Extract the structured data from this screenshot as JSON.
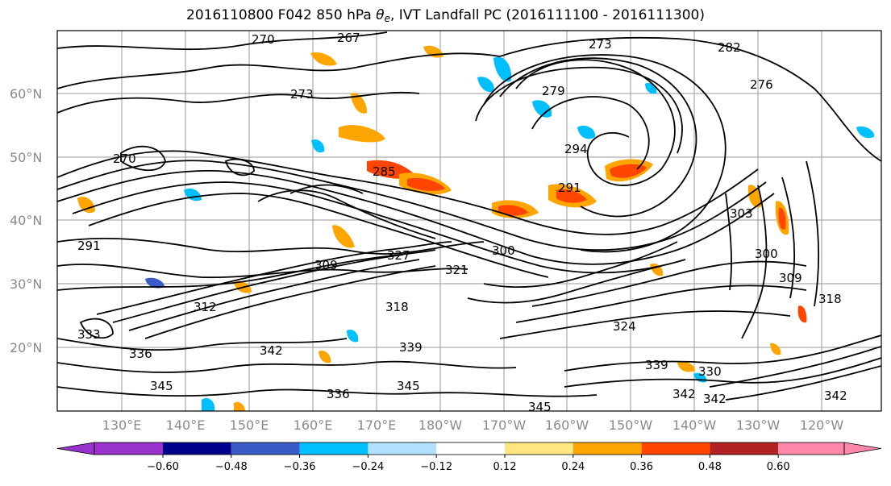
{
  "title": {
    "prefix": "2016110800 F042 850 hPa ",
    "theta": "θ",
    "sub": "e",
    "suffix": ", IVT Landfall PC (2016111100 - 2016111300)"
  },
  "map": {
    "lat_labels": [
      "60°N",
      "50°N",
      "40°N",
      "30°N",
      "20°N"
    ],
    "lon_labels": [
      "130°E",
      "140°E",
      "150°E",
      "160°E",
      "170°E",
      "180°W",
      "170°W",
      "160°W",
      "150°W",
      "140°W",
      "130°W",
      "120°W"
    ],
    "contour_labels": [
      "270",
      "267",
      "273",
      "282",
      "270",
      "273",
      "279",
      "276",
      "285",
      "294",
      "291",
      "303",
      "300",
      "291",
      "309",
      "327",
      "300",
      "321",
      "312",
      "318",
      "309",
      "318",
      "333",
      "342",
      "336",
      "339",
      "345",
      "345",
      "336",
      "345",
      "342",
      "342",
      "330",
      "324",
      "339",
      "342"
    ],
    "shading_colors": {
      "strong_positive": "#ff3300",
      "positive": "#ffa500",
      "weak_positive": "#ffe680",
      "negative": "#00bfff",
      "strong_negative": "#3a5bc7"
    }
  },
  "colorbar": {
    "ticks": [
      "−0.60",
      "−0.48",
      "−0.36",
      "−0.24",
      "−0.12",
      "0.12",
      "0.24",
      "0.36",
      "0.48",
      "0.60"
    ],
    "colors": [
      "#9932cc",
      "#00008b",
      "#3a5bc7",
      "#00bfff",
      "#b0e2ff",
      "#ffffff",
      "#ffe680",
      "#ffa500",
      "#ff4500",
      "#b22222",
      "#ff88aa",
      "#ff88aa"
    ]
  }
}
